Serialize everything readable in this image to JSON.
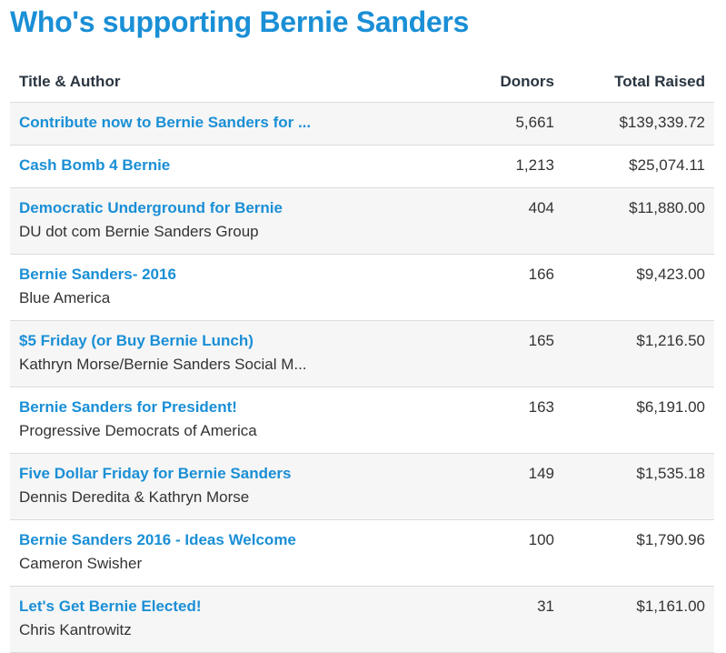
{
  "title": "Who's supporting Bernie Sanders",
  "table": {
    "headers": [
      "Title & Author",
      "Donors",
      "Total Raised"
    ],
    "rows": [
      {
        "title": "Contribute now to Bernie Sanders for ...",
        "donors": "5,661",
        "total": "$139,339.72"
      },
      {
        "title": "Cash Bomb 4 Bernie",
        "donors": "1,213",
        "total": "$25,074.11"
      },
      {
        "title": "Democratic Underground for Bernie",
        "author": "DU dot com Bernie Sanders Group",
        "donors": "404",
        "total": "$11,880.00"
      },
      {
        "title": "Bernie Sanders- 2016",
        "author": "Blue America",
        "donors": "166",
        "total": "$9,423.00"
      },
      {
        "title": "$5 Friday (or Buy Bernie Lunch)",
        "author": "Kathryn Morse/Bernie Sanders Social M...",
        "donors": "165",
        "total": "$1,216.50"
      },
      {
        "title": "Bernie Sanders for President!",
        "author": "Progressive Democrats of America",
        "donors": "163",
        "total": "$6,191.00"
      },
      {
        "title": "Five Dollar Friday for Bernie Sanders",
        "author": "Dennis Deredita & Kathryn Morse",
        "donors": "149",
        "total": "$1,535.18"
      },
      {
        "title": "Bernie Sanders 2016 - Ideas Welcome",
        "author": "Cameron Swisher",
        "donors": "100",
        "total": "$1,790.96"
      },
      {
        "title": "Let's Get Bernie Elected!",
        "author": "Chris Kantrowitz",
        "donors": "31",
        "total": "$1,161.00"
      }
    ]
  }
}
